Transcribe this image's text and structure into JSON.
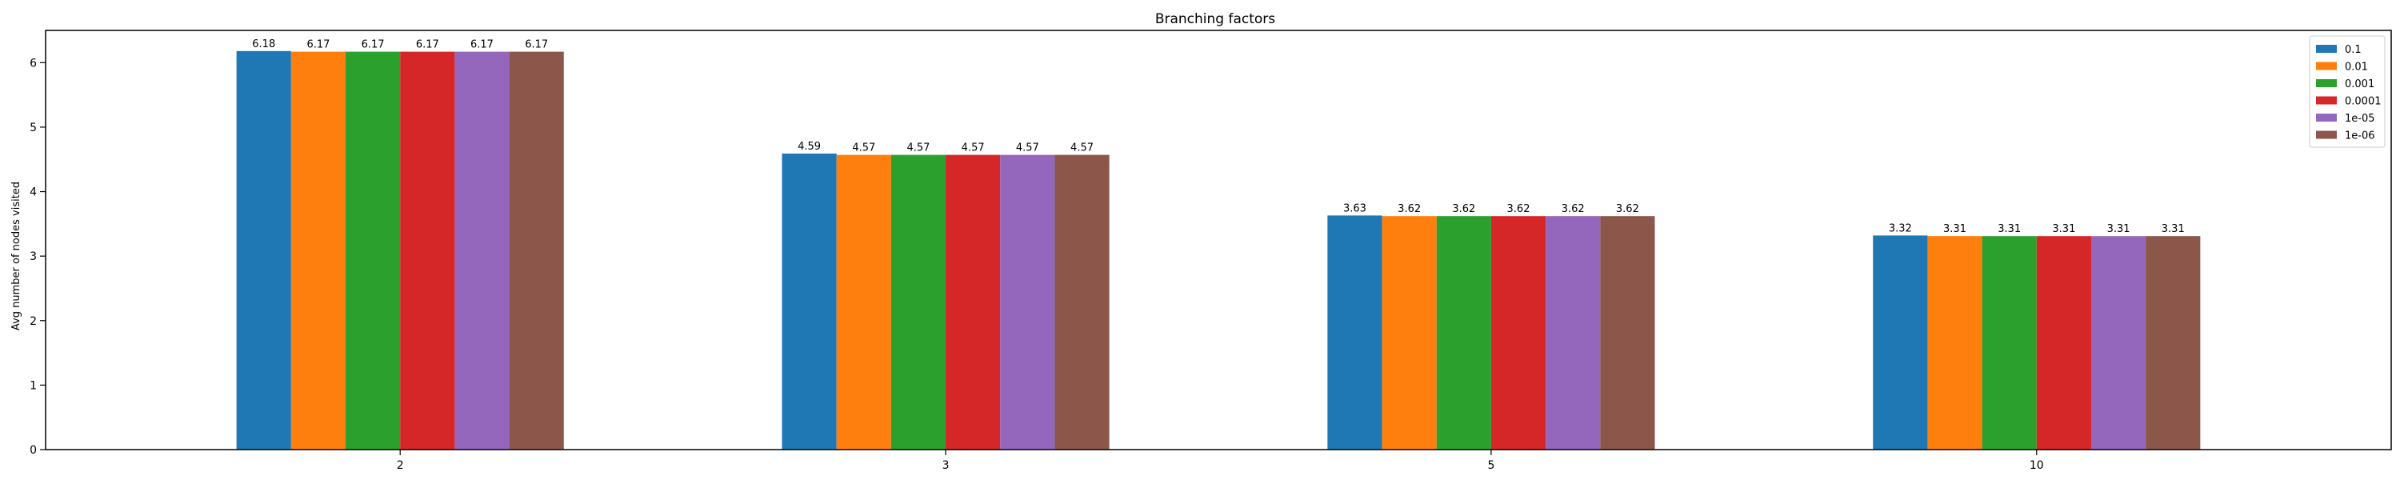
{
  "chart_data": {
    "type": "bar",
    "title": "Branching factors",
    "xlabel": "",
    "ylabel": "Avg number of nodes visited",
    "categories": [
      "2",
      "3",
      "5",
      "10"
    ],
    "ylim": [
      0,
      6.5
    ],
    "yticks": [
      "0",
      "1",
      "2",
      "3",
      "4",
      "5",
      "6"
    ],
    "grid": false,
    "legend_position": "top-right",
    "series": [
      {
        "name": "0.1",
        "color": "#1f77b4",
        "values": [
          6.18,
          4.59,
          3.63,
          3.32
        ],
        "labels": [
          "6.18",
          "4.59",
          "3.63",
          "3.32"
        ]
      },
      {
        "name": "0.01",
        "color": "#ff7f0e",
        "values": [
          6.17,
          4.57,
          3.62,
          3.31
        ],
        "labels": [
          "6.17",
          "4.57",
          "3.62",
          "3.31"
        ]
      },
      {
        "name": "0.001",
        "color": "#2ca02c",
        "values": [
          6.17,
          4.57,
          3.62,
          3.31
        ],
        "labels": [
          "6.17",
          "4.57",
          "3.62",
          "3.31"
        ]
      },
      {
        "name": "0.0001",
        "color": "#d62728",
        "values": [
          6.17,
          4.57,
          3.62,
          3.31
        ],
        "labels": [
          "6.17",
          "4.57",
          "3.62",
          "3.31"
        ]
      },
      {
        "name": "1e-05",
        "color": "#9467bd",
        "values": [
          6.17,
          4.57,
          3.62,
          3.31
        ],
        "labels": [
          "6.17",
          "4.57",
          "3.62",
          "3.31"
        ]
      },
      {
        "name": "1e-06",
        "color": "#8c564b",
        "values": [
          6.17,
          4.57,
          3.62,
          3.31
        ],
        "labels": [
          "6.17",
          "4.57",
          "3.62",
          "3.31"
        ]
      }
    ]
  }
}
